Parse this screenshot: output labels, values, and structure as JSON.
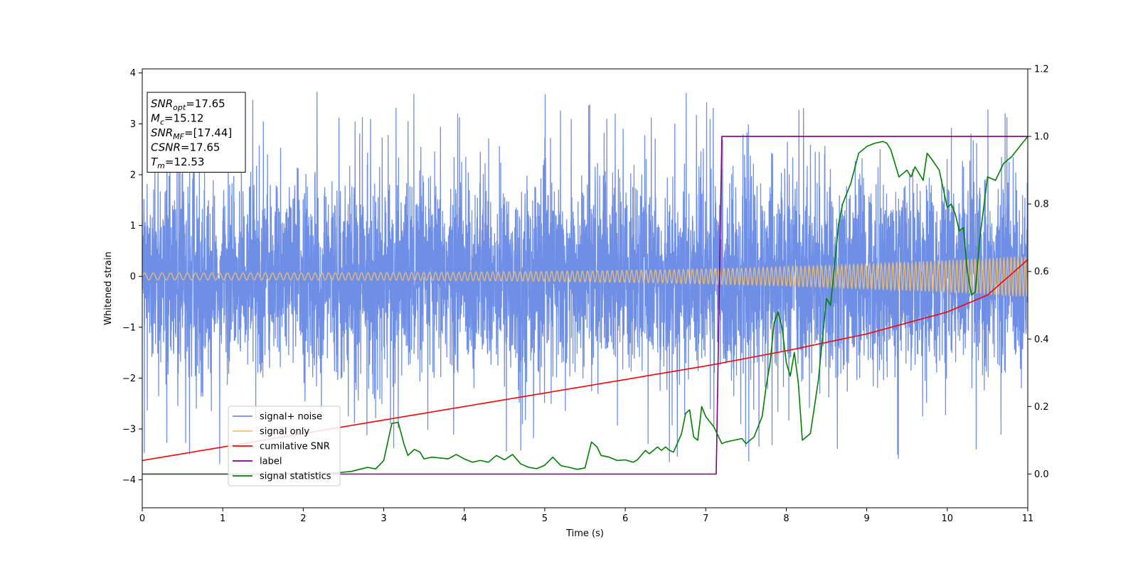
{
  "chart_data": {
    "type": "line",
    "title": "",
    "xlabel": "Time (s)",
    "ylabel": "Whitened strain",
    "y2label": "",
    "xlim": [
      0,
      11
    ],
    "ylim": [
      -4.55,
      4.08
    ],
    "y2lim": [
      -0.1,
      1.2
    ],
    "xticks": [
      0,
      1,
      2,
      3,
      4,
      5,
      6,
      7,
      8,
      9,
      10,
      11
    ],
    "yticks": [
      -4,
      -3,
      -2,
      -1,
      0,
      1,
      2,
      3,
      4
    ],
    "y2ticks": [
      0.0,
      0.2,
      0.4,
      0.6,
      0.8,
      1.0,
      1.2
    ],
    "ytick_labels": [
      "−4",
      "−3",
      "−2",
      "−1",
      "0",
      "1",
      "2",
      "3",
      "4"
    ],
    "y2tick_labels": [
      "0.0",
      "0.2",
      "0.4",
      "0.6",
      "0.8",
      "1.0",
      "1.2"
    ],
    "grid": false,
    "legend_position": "lower-left",
    "annotation_box": {
      "position": "upper-left",
      "lines": [
        {
          "sym": "SNR",
          "sub": "opt",
          "value": "=17.65"
        },
        {
          "sym": "M",
          "sub": "c",
          "value": "=15.12"
        },
        {
          "sym": "SNR",
          "sub": "MF",
          "value": "=[17.44]"
        },
        {
          "sym": "CSNR",
          "sub": "",
          "value": "=17.65"
        },
        {
          "sym": "T",
          "sub": "m",
          "value": "=12.53"
        }
      ]
    },
    "series": [
      {
        "name": "signal+ noise",
        "axis": "left",
        "color": "#6f8fe6",
        "kind": "noise",
        "description_values": {
          "center": 0,
          "typical_amplitude": 1.7,
          "max": 3.7,
          "min": -3.95
        }
      },
      {
        "name": "signal only",
        "axis": "left",
        "color": "#f5c26b",
        "kind": "chirp",
        "amplitude_start": 0.07,
        "amplitude_end": 0.4,
        "cycles_per_second_start": 9,
        "cycles_per_second_end": 23
      },
      {
        "name": "cumilative SNR",
        "axis": "right",
        "color": "#ff0000",
        "x": [
          0,
          1,
          2,
          3,
          4,
          5,
          6,
          7,
          8,
          9,
          10,
          10.5,
          11
        ],
        "y": [
          0.04,
          0.08,
          0.12,
          0.16,
          0.2,
          0.24,
          0.28,
          0.32,
          0.365,
          0.415,
          0.48,
          0.53,
          0.635
        ]
      },
      {
        "name": "label",
        "axis": "right",
        "color": "#800080",
        "x": [
          0,
          7.13,
          7.2,
          11
        ],
        "y": [
          0.0,
          0.0,
          1.0,
          1.0
        ]
      },
      {
        "name": "signal statistics",
        "axis": "right",
        "color": "#008000",
        "x": [
          0,
          1.5,
          2.4,
          2.6,
          2.8,
          2.9,
          3.0,
          3.1,
          3.18,
          3.25,
          3.3,
          3.38,
          3.45,
          3.5,
          3.6,
          3.8,
          3.9,
          4.0,
          4.1,
          4.2,
          4.3,
          4.4,
          4.5,
          4.6,
          4.7,
          4.8,
          4.9,
          5.0,
          5.1,
          5.2,
          5.3,
          5.4,
          5.5,
          5.58,
          5.65,
          5.7,
          5.8,
          5.9,
          6.0,
          6.1,
          6.15,
          6.25,
          6.3,
          6.4,
          6.45,
          6.5,
          6.55,
          6.6,
          6.7,
          6.75,
          6.8,
          6.85,
          6.9,
          6.95,
          7.0,
          7.1,
          7.2,
          7.25,
          7.35,
          7.45,
          7.5,
          7.55,
          7.6,
          7.7,
          7.75,
          7.8,
          7.85,
          7.9,
          7.95,
          8.0,
          8.05,
          8.1,
          8.15,
          8.2,
          8.3,
          8.35,
          8.4,
          8.5,
          8.55,
          8.6,
          8.65,
          8.7,
          8.8,
          8.9,
          9.0,
          9.1,
          9.2,
          9.25,
          9.3,
          9.4,
          9.5,
          9.55,
          9.6,
          9.7,
          9.75,
          9.8,
          9.9,
          10.0,
          10.05,
          10.1,
          10.15,
          10.2,
          10.25,
          10.3,
          10.35,
          10.4,
          10.5,
          10.6,
          10.7,
          10.8,
          10.9,
          11.0
        ],
        "y": [
          0.0,
          0.0,
          0.003,
          0.008,
          0.02,
          0.015,
          0.04,
          0.15,
          0.153,
          0.09,
          0.055,
          0.073,
          0.065,
          0.045,
          0.05,
          0.045,
          0.058,
          0.045,
          0.035,
          0.04,
          0.035,
          0.055,
          0.042,
          0.058,
          0.03,
          0.02,
          0.016,
          0.026,
          0.05,
          0.025,
          0.02,
          0.014,
          0.018,
          0.095,
          0.08,
          0.055,
          0.05,
          0.04,
          0.042,
          0.035,
          0.042,
          0.07,
          0.06,
          0.08,
          0.07,
          0.08,
          0.07,
          0.065,
          0.12,
          0.18,
          0.19,
          0.11,
          0.1,
          0.2,
          0.17,
          0.14,
          0.09,
          0.095,
          0.1,
          0.105,
          0.09,
          0.1,
          0.11,
          0.17,
          0.26,
          0.33,
          0.45,
          0.48,
          0.43,
          0.33,
          0.29,
          0.36,
          0.27,
          0.1,
          0.12,
          0.2,
          0.28,
          0.52,
          0.5,
          0.62,
          0.74,
          0.8,
          0.86,
          0.95,
          0.97,
          0.98,
          0.985,
          0.98,
          0.96,
          0.88,
          0.9,
          0.88,
          0.91,
          0.87,
          0.95,
          0.935,
          0.9,
          0.79,
          0.8,
          0.77,
          0.72,
          0.73,
          0.6,
          0.53,
          0.54,
          0.69,
          0.88,
          0.87,
          0.92,
          0.94,
          0.97,
          1.0
        ]
      }
    ]
  }
}
